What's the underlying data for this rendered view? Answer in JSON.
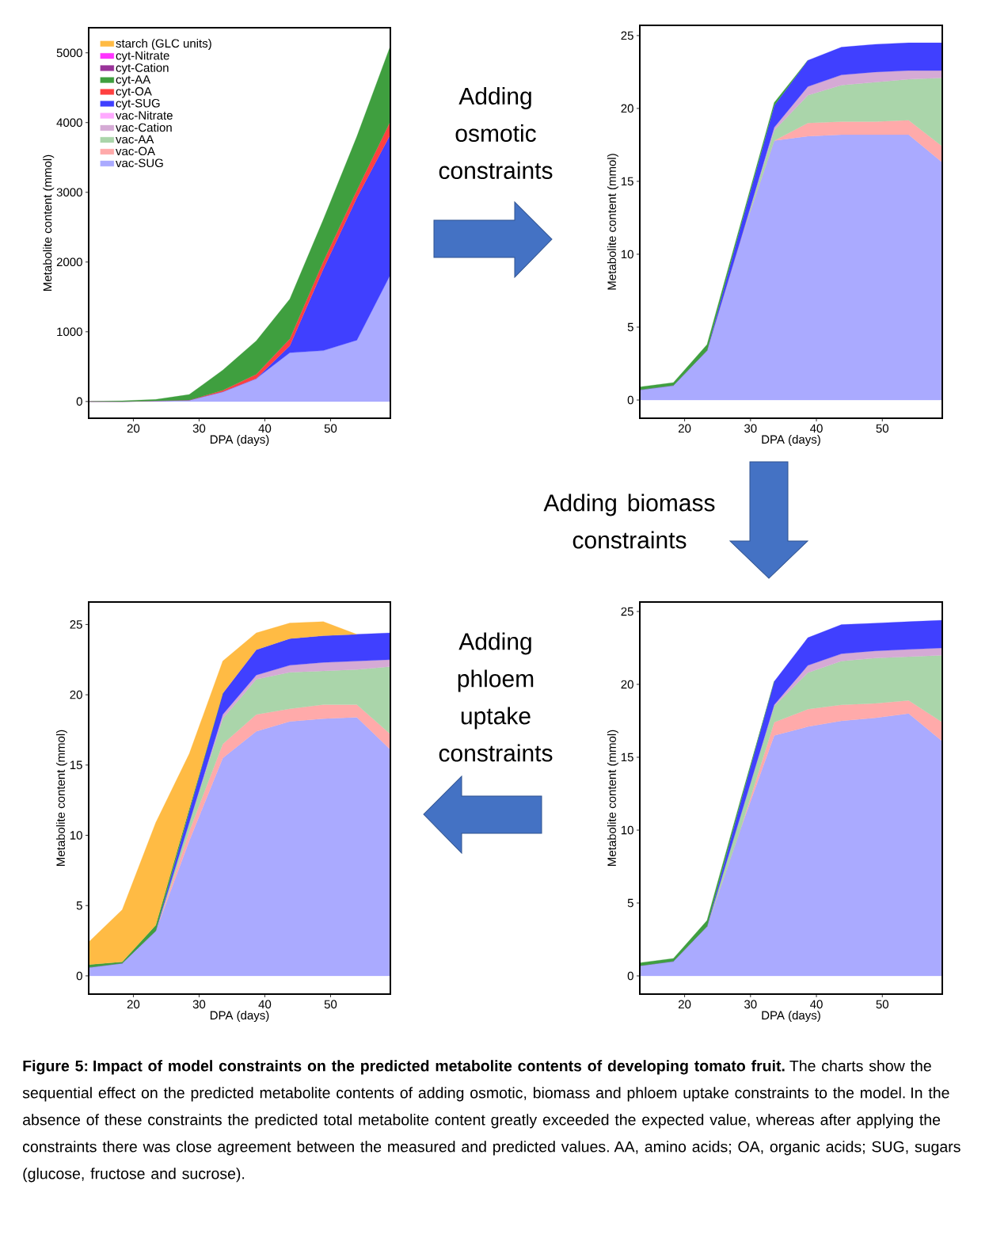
{
  "chart_data": [
    {
      "type": "area",
      "stacked": true,
      "legend": "top left",
      "xlabel": "DPA (days)",
      "ylabel": "Metabolite content (mmol)",
      "x": [
        13.2,
        18.3,
        23.4,
        28.5,
        33.6,
        38.7,
        43.8,
        48.9,
        54.0,
        59.1
      ],
      "xlim": [
        13.2,
        59.1
      ],
      "ylim": [
        -240,
        5360
      ],
      "xticks": [
        20,
        30,
        40,
        50
      ],
      "yticks": [
        0,
        1000,
        2000,
        3000,
        4000,
        5000
      ],
      "series": [
        {
          "name": "vac-SUG",
          "color": "#aaaaff",
          "values": [
            0,
            0,
            10,
            20,
            140,
            330,
            700,
            730,
            880,
            1820
          ]
        },
        {
          "name": "vac-OA",
          "color": "#ffaaaa",
          "values": [
            null,
            null,
            null,
            null,
            null,
            null,
            null,
            null,
            null,
            null
          ]
        },
        {
          "name": "vac-AA",
          "color": "#aad5aa",
          "values": [
            null,
            null,
            null,
            null,
            null,
            null,
            null,
            null,
            null,
            null
          ]
        },
        {
          "name": "vac-Cation",
          "color": "#d5aad5",
          "values": [
            null,
            null,
            null,
            null,
            null,
            null,
            null,
            null,
            null,
            null
          ]
        },
        {
          "name": "vac-Nitrate",
          "color": "#ffaaff",
          "values": [
            null,
            null,
            null,
            null,
            null,
            null,
            null,
            null,
            null,
            null
          ]
        },
        {
          "name": "cyt-SUG",
          "color": "#4040ff",
          "values": [
            0,
            0,
            0,
            0,
            0,
            0,
            100,
            1170,
            2040,
            2010
          ]
        },
        {
          "name": "cyt-OA",
          "color": "#ff4040",
          "values": [
            0,
            0,
            0,
            0,
            20,
            60,
            100,
            110,
            110,
            190
          ]
        },
        {
          "name": "cyt-AA",
          "color": "#3f9f3f",
          "values": [
            0,
            10,
            20,
            80,
            290,
            480,
            570,
            600,
            770,
            1080
          ]
        },
        {
          "name": "cyt-Cation",
          "color": "#993399",
          "values": [
            null,
            null,
            null,
            null,
            null,
            null,
            null,
            null,
            null,
            null
          ]
        },
        {
          "name": "cyt-Nitrate",
          "color": "#ff33ff",
          "values": [
            null,
            null,
            null,
            null,
            null,
            null,
            null,
            null,
            null,
            null
          ]
        },
        {
          "name": "starch (GLC units)",
          "color": "#ffbb44",
          "values": [
            null,
            null,
            null,
            null,
            null,
            null,
            null,
            null,
            null,
            null
          ]
        }
      ]
    },
    {
      "type": "area",
      "stacked": true,
      "xlabel": "DPA (days)",
      "ylabel": "Metabolite content (mmol)",
      "x": [
        13.2,
        18.3,
        23.4,
        28.5,
        33.6,
        38.7,
        43.8,
        48.9,
        54.0,
        59.1
      ],
      "xlim": [
        13.2,
        59.1
      ],
      "ylim": [
        -1.25,
        25.7
      ],
      "xticks": [
        20,
        30,
        40,
        50
      ],
      "yticks": [
        0,
        5,
        10,
        15,
        20,
        25
      ],
      "series": [
        {
          "color": "#aaaaff",
          "values": [
            0.7,
            1.0,
            3.4,
            11.0,
            17.8,
            18.1,
            18.2,
            18.2,
            18.2,
            16.3
          ]
        },
        {
          "color": "#ffaaaa",
          "values": [
            0,
            0,
            0,
            0,
            0,
            0.9,
            0.9,
            0.9,
            1.0,
            1.1
          ]
        },
        {
          "color": "#aad5aa",
          "values": [
            0,
            0,
            0,
            0,
            0.7,
            1.9,
            2.5,
            2.7,
            2.8,
            4.7
          ]
        },
        {
          "color": "#d5aad5",
          "values": [
            0,
            0,
            0,
            0,
            0.2,
            0.6,
            0.7,
            0.7,
            0.6,
            0.5
          ]
        },
        {
          "color": "#4040ff",
          "values": [
            0,
            0,
            0,
            0.9,
            1.5,
            1.8,
            1.9,
            1.9,
            1.9,
            1.9
          ]
        },
        {
          "color": "#3f9f3f",
          "values": [
            0.2,
            0.2,
            0.4,
            0.2,
            0.2,
            0,
            null,
            null,
            null,
            null
          ]
        }
      ]
    },
    {
      "type": "area",
      "stacked": true,
      "xlabel": "DPA (days)",
      "ylabel": "Metabolite content (mmol)",
      "x": [
        13.2,
        18.3,
        23.4,
        28.5,
        33.6,
        38.7,
        43.8,
        48.9,
        54.0,
        59.1
      ],
      "xlim": [
        13.2,
        59.1
      ],
      "ylim": [
        -1.3,
        26.6
      ],
      "xticks": [
        20,
        30,
        40,
        50
      ],
      "yticks": [
        0,
        5,
        10,
        15,
        20,
        25
      ],
      "series": [
        {
          "color": "#aaaaff",
          "values": [
            0.6,
            0.9,
            3.2,
            9.6,
            15.5,
            17.4,
            18.1,
            18.3,
            18.4,
            16.1
          ]
        },
        {
          "color": "#ffaaaa",
          "values": [
            0,
            0,
            0,
            0.7,
            1.0,
            1.2,
            0.9,
            1.0,
            0.9,
            1.1
          ]
        },
        {
          "color": "#aad5aa",
          "values": [
            0,
            0,
            0,
            0.6,
            1.8,
            2.5,
            2.6,
            2.4,
            2.5,
            4.8
          ]
        },
        {
          "color": "#d5aad5",
          "values": [
            0,
            0,
            0,
            0,
            0.3,
            0.3,
            0.5,
            0.6,
            0.6,
            0.5
          ]
        },
        {
          "color": "#4040ff",
          "values": [
            0,
            0,
            0,
            0.8,
            1.5,
            1.8,
            1.9,
            1.9,
            1.9,
            1.9
          ]
        },
        {
          "color": "#3f9f3f",
          "values": [
            0.2,
            0.1,
            0.4,
            0.2,
            0,
            null,
            null,
            null,
            null,
            null
          ]
        },
        {
          "color": "#ffbb44",
          "values": [
            1.6,
            3.7,
            7.3,
            3.9,
            2.3,
            1.2,
            1.1,
            1.0,
            0,
            null
          ]
        }
      ]
    },
    {
      "type": "area",
      "stacked": true,
      "xlabel": "DPA (days)",
      "ylabel": "Metabolite content (mmol)",
      "x": [
        13.2,
        18.3,
        23.4,
        28.5,
        33.6,
        38.7,
        43.8,
        48.9,
        54.0,
        59.1
      ],
      "xlim": [
        13.2,
        59.1
      ],
      "ylim": [
        -1.25,
        25.65
      ],
      "xticks": [
        20,
        30,
        40,
        50
      ],
      "yticks": [
        0,
        5,
        10,
        15,
        20,
        25
      ],
      "series": [
        {
          "color": "#aaaaff",
          "values": [
            0.7,
            1.0,
            3.4,
            10.1,
            16.5,
            17.1,
            17.5,
            17.7,
            18.0,
            16.1
          ]
        },
        {
          "color": "#ffaaaa",
          "values": [
            0,
            0,
            0,
            0,
            0.9,
            1.2,
            1.1,
            1.0,
            0.9,
            1.3
          ]
        },
        {
          "color": "#aad5aa",
          "values": [
            0,
            0,
            0,
            0.9,
            1.1,
            2.5,
            3.0,
            3.1,
            3.0,
            4.6
          ]
        },
        {
          "color": "#d5aad5",
          "values": [
            0,
            0,
            0,
            0,
            0.1,
            0.5,
            0.5,
            0.5,
            0.5,
            0.5
          ]
        },
        {
          "color": "#4040ff",
          "values": [
            0,
            0,
            0,
            0.9,
            1.6,
            1.9,
            2.0,
            1.9,
            1.9,
            1.9
          ]
        },
        {
          "color": "#3f9f3f",
          "values": [
            0.2,
            0.2,
            0.4,
            0.2,
            0,
            null,
            null,
            null,
            null,
            null
          ]
        }
      ]
    },
    {
      "type": "other",
      "annotations": [
        "Adding osmotic constraints",
        "Adding biomass constraints",
        "Adding phloem uptake constraints",
        "**Figure 5: Impact of model constraints on the predicted metabolite contents of developing tomato fruit.** The charts show the sequential effect on the predicted metabolite contents of adding osmotic, biomass and phloem uptake constraints to the model. In the absence of these constraints the predicted total metabolite content greatly exceeded the expected value, whereas after applying the constraints there was close agreement between the measured and predicted values. AA, amino acids; OA, organic acids; SUG, sugars (glucose, fructose and sucrose)."
      ]
    }
  ]
}
